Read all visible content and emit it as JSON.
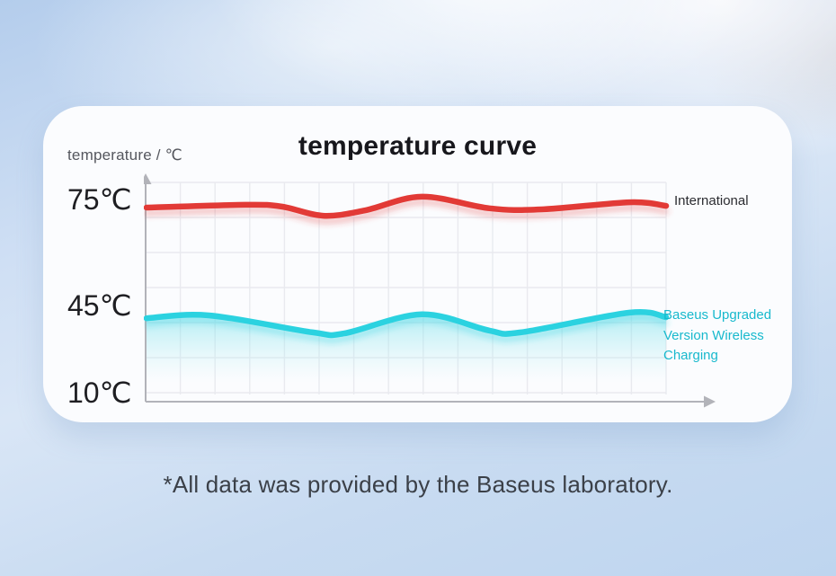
{
  "page": {
    "footer_note": "*All data was provided by the Baseus laboratory."
  },
  "card": {
    "title": "temperature curve",
    "y_axis_title": "temperature / ℃",
    "y_ticks": [
      "75℃",
      "45℃",
      "10℃"
    ],
    "legend": {
      "international": "International",
      "baseus": "Baseus Upgraded Version Wireless Charging"
    },
    "colors": {
      "international_line": "#e23a36",
      "baseus_line": "#2bd2e0",
      "baseus_text": "#18b9cd",
      "grid": "#e9eaef",
      "axis": "#b2b3b9"
    }
  },
  "chart_data": {
    "type": "line",
    "title": "temperature curve",
    "xlabel": "",
    "ylabel": "temperature / ℃",
    "y_tick_values": [
      75,
      45,
      10
    ],
    "x_axis": "unlabeled (time), arrow to the right",
    "grid": true,
    "legend_position": "right of each curve",
    "series": [
      {
        "name": "International",
        "color": "#e23a36",
        "x_pct": [
          0,
          19,
          26,
          34,
          42,
          53,
          66,
          76,
          93,
          100
        ],
        "temps_c": [
          72.7,
          73.5,
          73.0,
          70.4,
          71.9,
          75.8,
          72.5,
          72.2,
          74.2,
          73.2
        ]
      },
      {
        "name": "Baseus Upgraded Version Wireless Charging",
        "color": "#2bd2e0",
        "area_fill": true,
        "x_pct": [
          0,
          12,
          32,
          38,
          53,
          66,
          72,
          93,
          100
        ],
        "temps_c": [
          41.4,
          42.2,
          37.4,
          37.1,
          42.5,
          37.9,
          37.4,
          43.0,
          41.7
        ]
      }
    ]
  }
}
